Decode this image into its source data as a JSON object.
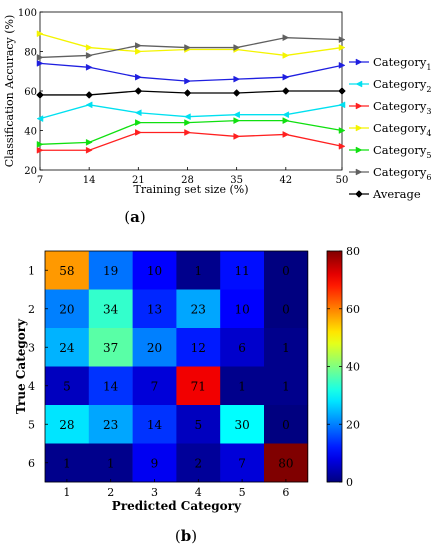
{
  "chart_data": [
    {
      "type": "line",
      "panel_label": "a",
      "xlabel": "Training set size (%)",
      "ylabel": "Classification Accuracy (%)",
      "x": [
        7,
        14,
        21,
        28,
        35,
        42,
        50
      ],
      "xlim": [
        7,
        50
      ],
      "ylim": [
        20,
        100
      ],
      "yticks": [
        20,
        40,
        60,
        80,
        100
      ],
      "grid": false,
      "legend_position": "right",
      "series": [
        {
          "name_main": "Category",
          "name_sub": "1",
          "color": "#1f1fe0",
          "marker": "triangle-right",
          "values": [
            74,
            72,
            67,
            65,
            66,
            67,
            73
          ]
        },
        {
          "name_main": "Category",
          "name_sub": "2",
          "color": "#00e0f0",
          "marker": "triangle-left",
          "values": [
            46,
            53,
            49,
            47,
            48,
            48,
            53
          ]
        },
        {
          "name_main": "Category",
          "name_sub": "3",
          "color": "#ff2020",
          "marker": "triangle-right",
          "values": [
            30,
            30,
            39,
            39,
            37,
            38,
            32
          ]
        },
        {
          "name_main": "Category",
          "name_sub": "4",
          "color": "#f4f400",
          "marker": "triangle-right",
          "values": [
            89,
            82,
            80,
            81,
            81,
            78,
            82
          ]
        },
        {
          "name_main": "Category",
          "name_sub": "5",
          "color": "#10e010",
          "marker": "triangle-right",
          "values": [
            33,
            34,
            44,
            44,
            45,
            45,
            40
          ]
        },
        {
          "name_main": "Category",
          "name_sub": "6",
          "color": "#606060",
          "marker": "triangle-right",
          "values": [
            77,
            78,
            83,
            82,
            82,
            87,
            86
          ]
        },
        {
          "name_main": "Average",
          "name_sub": "",
          "color": "#000000",
          "marker": "diamond",
          "values": [
            58,
            58,
            60,
            59,
            59,
            60,
            60
          ]
        }
      ]
    },
    {
      "type": "heatmap",
      "panel_label": "b",
      "xlabel": "Predicted Category",
      "ylabel": "True Category",
      "x_categories": [
        "1",
        "2",
        "3",
        "4",
        "5",
        "6"
      ],
      "y_categories": [
        "1",
        "2",
        "3",
        "4",
        "5",
        "6"
      ],
      "values": [
        [
          58,
          19,
          10,
          1,
          11,
          0
        ],
        [
          20,
          34,
          13,
          23,
          10,
          0
        ],
        [
          24,
          37,
          20,
          12,
          6,
          1
        ],
        [
          5,
          14,
          7,
          71,
          1,
          1
        ],
        [
          28,
          23,
          14,
          5,
          30,
          0
        ],
        [
          1,
          1,
          9,
          2,
          7,
          80
        ]
      ],
      "colormap": "jet",
      "clim": [
        0,
        80
      ],
      "colorbar_ticks": [
        0,
        20,
        40,
        60,
        80
      ]
    }
  ]
}
